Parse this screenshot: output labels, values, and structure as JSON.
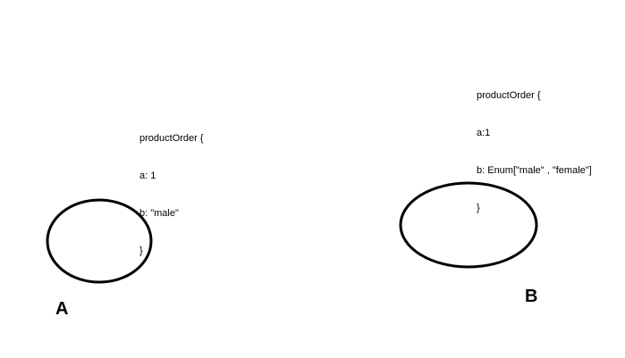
{
  "diagram": {
    "nodes": [
      {
        "id": "A",
        "label": "A",
        "code": {
          "lines": [
            "productOrder {",
            "a: 1",
            "b: \"male\"",
            "}"
          ]
        }
      },
      {
        "id": "B",
        "label": "B",
        "code": {
          "lines": [
            "productOrder {",
            "a:1",
            "b: Enum[\"male\" , \"female\"]",
            "}"
          ]
        }
      }
    ]
  }
}
